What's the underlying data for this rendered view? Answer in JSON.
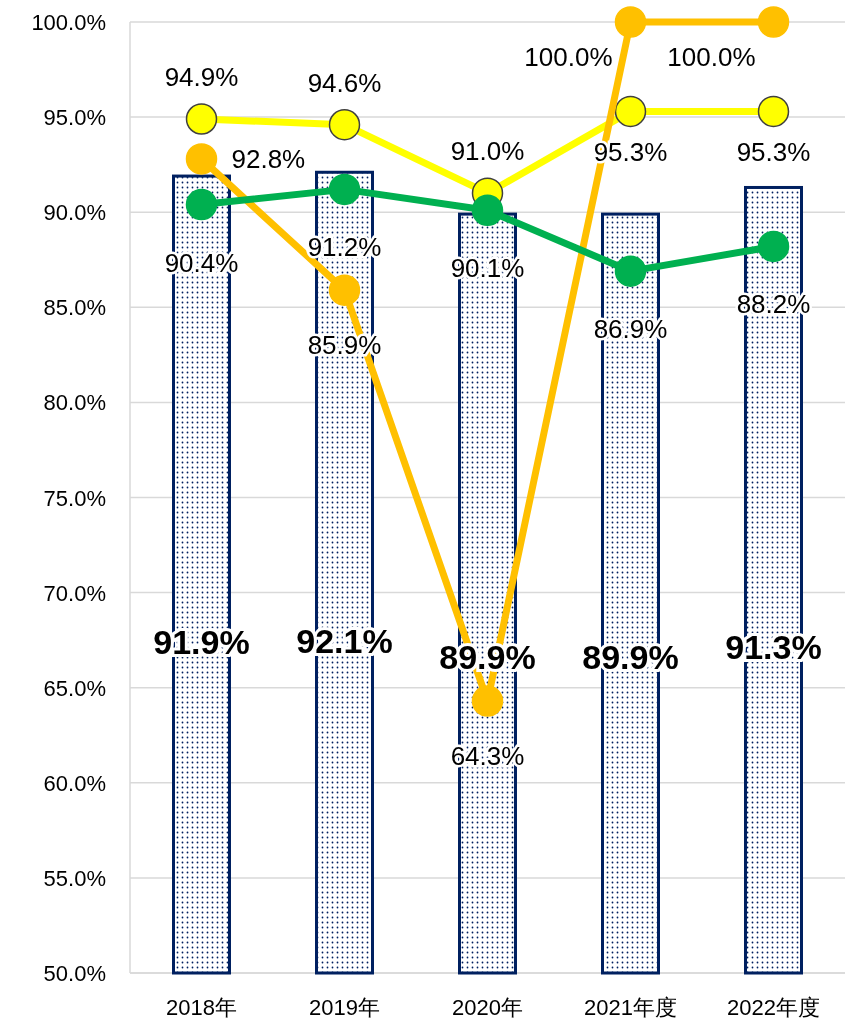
{
  "chart_data": {
    "type": "bar",
    "categories": [
      "2018年",
      "2019年",
      "2020年",
      "2021年度",
      "2022年度"
    ],
    "ylim": [
      50,
      100
    ],
    "yticks": [
      {
        "value": 50,
        "label": "50.0%"
      },
      {
        "value": 55,
        "label": "55.0%"
      },
      {
        "value": 60,
        "label": "60.0%"
      },
      {
        "value": 65,
        "label": "65.0%"
      },
      {
        "value": 70,
        "label": "70.0%"
      },
      {
        "value": 75,
        "label": "75.0%"
      },
      {
        "value": 80,
        "label": "80.0%"
      },
      {
        "value": 85,
        "label": "85.0%"
      },
      {
        "value": 90,
        "label": "90.0%"
      },
      {
        "value": 95,
        "label": "95.0%"
      },
      {
        "value": 100,
        "label": "100.0%"
      }
    ],
    "grid": "y",
    "marker": "circle",
    "series": [
      {
        "color": "#002060",
        "values": [
          91.9,
          92.1,
          89.9,
          89.9,
          91.3
        ],
        "value_labels": [
          "91.9%",
          "92.1%",
          "89.9%",
          "89.9%",
          "91.3%"
        ]
      },
      {
        "type": "line",
        "color": "#ffff00",
        "values": [
          94.9,
          94.6,
          91.0,
          95.3,
          95.3
        ],
        "value_labels": [
          "94.9%",
          "94.6%",
          "91.0%",
          "95.3%",
          "95.3%"
        ]
      },
      {
        "type": "line",
        "color": "#ffc000",
        "values": [
          92.8,
          85.9,
          64.3,
          100.0,
          100.0
        ],
        "value_labels": [
          "92.8%",
          "85.9%",
          "64.3%",
          "100.0%",
          "100.0%"
        ]
      },
      {
        "type": "line",
        "color": "#00b050",
        "values": [
          90.4,
          91.2,
          90.1,
          86.9,
          88.2
        ],
        "value_labels": [
          "90.4%",
          "91.2%",
          "90.1%",
          "86.9%",
          "88.2%"
        ]
      }
    ]
  }
}
